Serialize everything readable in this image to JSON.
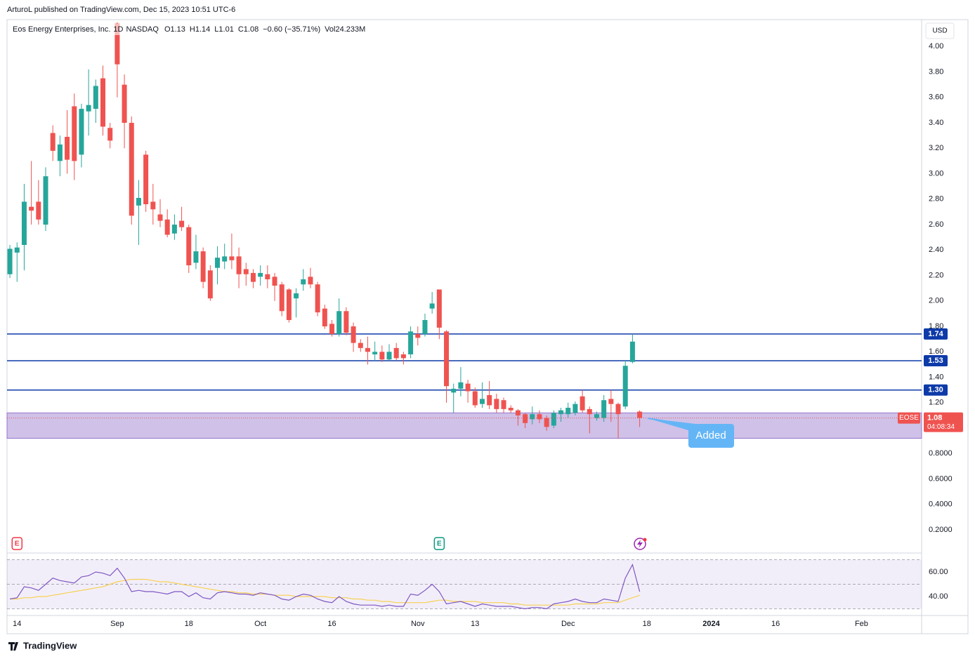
{
  "publisher_line": "ArturoL published on TradingView.com, Dec 15, 2023 10:51 UTC-6",
  "footer": "TradingView",
  "chart_data": [
    {
      "type": "candlestick",
      "symbol": "Eos Energy Enterprises, Inc.",
      "interval": "1D",
      "exchange": "NASDAQ",
      "ohlc_labels": [
        "O",
        "H",
        "L",
        "C"
      ],
      "change": "−0.60 (−35.71%)",
      "volume": "Vol24.233M",
      "currency": "USD",
      "ticker": "EOSE",
      "countdown": "04:08:34",
      "up_color": "#26a69a",
      "down_color": "#ef5350",
      "open": [
        2.21,
        2.38,
        2.44,
        2.74,
        2.78,
        2.6,
        3.32,
        3.1,
        3.29,
        3.53,
        3.15,
        3.49,
        3.51,
        3.75,
        3.36,
        4.18,
        3.7,
        3.4,
        2.75,
        3.15,
        2.78,
        2.68,
        2.64,
        2.53,
        2.63,
        2.58,
        2.3,
        2.39,
        2.24,
        2.26,
        2.31,
        2.35,
        2.35,
        2.25,
        2.22,
        2.19,
        2.21,
        2.19,
        2.13,
        2.09,
        2.02,
        2.13,
        2.19,
        2.13,
        1.94,
        1.82,
        1.74,
        1.92,
        1.8,
        1.67,
        1.63,
        1.58,
        1.6,
        1.54,
        1.63,
        1.58,
        1.58,
        1.74,
        1.74,
        1.94,
        2.09,
        1.76,
        1.28,
        1.31,
        1.35,
        1.29,
        1.19,
        1.26,
        1.23,
        1.22,
        1.16,
        1.14,
        1.11,
        1.07,
        1.11,
        1.08,
        1.02,
        1.11,
        1.11,
        1.12,
        1.25,
        1.15,
        1.08,
        1.08,
        1.23,
        1.19,
        1.17,
        1.52,
        1.13
      ],
      "high": [
        2.44,
        2.46,
        2.92,
        3.1,
        2.95,
        3.05,
        3.38,
        3.3,
        3.5,
        3.63,
        3.55,
        3.82,
        3.74,
        3.85,
        3.4,
        4.19,
        3.78,
        3.45,
        2.95,
        3.18,
        2.92,
        2.8,
        2.72,
        2.68,
        2.74,
        2.6,
        2.52,
        2.42,
        2.28,
        2.43,
        2.45,
        2.53,
        2.42,
        2.3,
        2.25,
        2.28,
        2.28,
        2.22,
        2.15,
        2.1,
        2.1,
        2.25,
        2.26,
        2.15,
        1.97,
        1.85,
        2.02,
        1.95,
        1.83,
        1.7,
        1.72,
        1.68,
        1.65,
        1.66,
        1.67,
        1.6,
        1.8,
        1.8,
        1.9,
        2.07,
        2.09,
        1.77,
        1.35,
        1.48,
        1.38,
        1.32,
        1.36,
        1.37,
        1.27,
        1.24,
        1.18,
        1.15,
        1.12,
        1.17,
        1.14,
        1.1,
        1.14,
        1.16,
        1.2,
        1.21,
        1.3,
        1.17,
        1.13,
        1.26,
        1.3,
        1.2,
        1.53,
        1.74,
        1.14
      ],
      "low": [
        2.18,
        2.15,
        2.24,
        2.6,
        2.6,
        2.55,
        3.1,
        2.98,
        3.0,
        2.95,
        3.05,
        3.3,
        3.4,
        3.3,
        3.2,
        3.6,
        3.2,
        2.6,
        2.44,
        2.7,
        2.6,
        2.58,
        2.5,
        2.48,
        2.55,
        2.22,
        2.25,
        2.1,
        2.0,
        2.13,
        2.25,
        2.25,
        2.1,
        2.12,
        2.1,
        2.12,
        2.1,
        2.0,
        1.88,
        1.83,
        1.87,
        2.08,
        2.1,
        1.88,
        1.78,
        1.72,
        1.72,
        1.73,
        1.6,
        1.6,
        1.5,
        1.53,
        1.52,
        1.53,
        1.53,
        1.5,
        1.55,
        1.65,
        1.72,
        1.9,
        1.7,
        1.2,
        1.12,
        1.25,
        1.2,
        1.16,
        1.16,
        1.15,
        1.12,
        1.12,
        1.12,
        1.02,
        1.0,
        1.03,
        1.04,
        0.98,
        1.0,
        1.05,
        1.08,
        1.1,
        1.12,
        0.96,
        1.06,
        1.05,
        1.05,
        0.92,
        1.15,
        1.51,
        1.01
      ],
      "close": [
        2.41,
        2.42,
        2.78,
        2.71,
        2.64,
        2.98,
        3.18,
        3.23,
        3.11,
        3.1,
        3.51,
        3.54,
        3.69,
        3.37,
        3.26,
        3.86,
        3.4,
        2.67,
        2.81,
        2.76,
        2.72,
        2.63,
        2.52,
        2.6,
        2.58,
        2.28,
        2.39,
        2.15,
        2.02,
        2.34,
        2.35,
        2.32,
        2.21,
        2.21,
        2.15,
        2.22,
        2.17,
        2.12,
        1.92,
        1.85,
        2.06,
        2.17,
        2.13,
        1.91,
        1.8,
        1.74,
        1.92,
        1.75,
        1.67,
        1.63,
        1.6,
        1.6,
        1.54,
        1.6,
        1.55,
        1.55,
        1.76,
        1.71,
        1.85,
        1.98,
        1.79,
        1.33,
        1.31,
        1.36,
        1.29,
        1.18,
        1.23,
        1.18,
        1.15,
        1.15,
        1.14,
        1.1,
        1.04,
        1.11,
        1.07,
        1.01,
        1.12,
        1.14,
        1.16,
        1.19,
        1.14,
        1.11,
        1.11,
        1.22,
        1.19,
        1.11,
        1.49,
        1.68,
        1.08
      ],
      "levels": [
        1.74,
        1.53,
        {
          "value": 1.3,
          "label": "1.30"
        }
      ],
      "level_color": "#0d3aa9",
      "zone": [
        0.92,
        1.12
      ],
      "zone_color": "#9575cd",
      "annotation": "Added",
      "events": [
        {
          "index": 1,
          "label": "E",
          "color": "#f23645"
        },
        {
          "index": 60,
          "label": "E",
          "color": "#089981"
        }
      ],
      "ylim": [
        0.035,
        4.2
      ],
      "yticks": [
        {
          "value": 4,
          "label": "4.00"
        },
        {
          "value": 3.8,
          "label": "3.80"
        },
        {
          "value": 3.6,
          "label": "3.60"
        },
        {
          "value": 3.4,
          "label": "3.40"
        },
        {
          "value": 3.2,
          "label": "3.20"
        },
        {
          "value": 3,
          "label": "3.00"
        },
        {
          "value": 2.8,
          "label": "2.80"
        },
        {
          "value": 2.6,
          "label": "2.60"
        },
        {
          "value": 2.4,
          "label": "2.40"
        },
        {
          "value": 2.2,
          "label": "2.20"
        },
        {
          "value": 2,
          "label": "2.00"
        },
        {
          "value": 1.8,
          "label": "1.80"
        },
        {
          "value": 1.6,
          "label": "1.60"
        },
        {
          "value": 1.4,
          "label": "1.40"
        },
        {
          "value": 1.2,
          "label": "1.20"
        },
        {
          "value": 0.8,
          "label": "0.8000"
        },
        {
          "value": 0.6,
          "label": "0.6000"
        },
        {
          "value": 0.4,
          "label": "0.4000"
        },
        {
          "value": 0.2,
          "label": "0.2000"
        }
      ],
      "xlim": [
        -0.4,
        127.4
      ],
      "xticks": [
        {
          "value": 1,
          "label": "14"
        },
        {
          "value": 15,
          "label": "Sep"
        },
        {
          "value": 25,
          "label": "18"
        },
        {
          "value": 35,
          "label": "Oct"
        },
        {
          "value": 45,
          "label": "16"
        },
        {
          "value": 57,
          "label": "Nov"
        },
        {
          "value": 65,
          "label": "13"
        },
        {
          "value": 78,
          "label": "Dec"
        },
        {
          "value": 89,
          "label": "18"
        },
        {
          "value": 98,
          "label": "2024"
        },
        {
          "value": 107,
          "label": "16"
        },
        {
          "value": 119,
          "label": "Feb"
        }
      ]
    },
    {
      "type": "line",
      "series": [
        {
          "color": "#7e57c2",
          "values": [
            38,
            39,
            48,
            47,
            45,
            50,
            55,
            53,
            52,
            51,
            56,
            57,
            60,
            59,
            57,
            63,
            55,
            44,
            45,
            44,
            44,
            43,
            42,
            44,
            44,
            40,
            43,
            39,
            38,
            43,
            44,
            43,
            42,
            42,
            41,
            43,
            42,
            41,
            38,
            37,
            40,
            42,
            41,
            38,
            36,
            35,
            40,
            36,
            34,
            33,
            33,
            33,
            32,
            33,
            32,
            32,
            42,
            41,
            45,
            50,
            44,
            34,
            35,
            36,
            34,
            32,
            34,
            33,
            32,
            32,
            32,
            31,
            30,
            31,
            31,
            30,
            34,
            35,
            36,
            38,
            36,
            35,
            35,
            38,
            37,
            36,
            55,
            66,
            44
          ]
        },
        {
          "color": "#f7d154",
          "values": [
            38,
            38,
            39,
            39,
            40,
            40,
            41,
            42,
            43,
            44,
            45,
            46,
            47,
            48,
            50,
            52,
            53,
            54,
            54,
            54,
            53,
            52,
            52,
            51,
            50,
            49,
            48,
            47,
            46,
            45,
            44,
            44,
            43,
            43,
            42,
            42,
            42,
            41,
            41,
            41,
            40,
            40,
            40,
            40,
            40,
            39,
            39,
            39,
            38,
            38,
            37,
            37,
            36,
            36,
            35,
            35,
            35,
            35,
            35,
            36,
            37,
            37,
            36,
            36,
            36,
            36,
            35,
            35,
            35,
            35,
            34,
            34,
            33,
            33,
            33,
            33,
            33,
            33,
            33,
            34,
            34,
            34,
            34,
            35,
            35,
            35,
            37,
            39,
            41
          ]
        }
      ],
      "bands": [
        70,
        50,
        30
      ],
      "band_color": "#7e57c2",
      "ylim": [
        25.7,
        71.4
      ],
      "yticks": [
        {
          "value": 60,
          "label": "60.00"
        },
        {
          "value": 40,
          "label": "40.00"
        }
      ],
      "xlim": [
        -0.4,
        127.4
      ]
    }
  ]
}
